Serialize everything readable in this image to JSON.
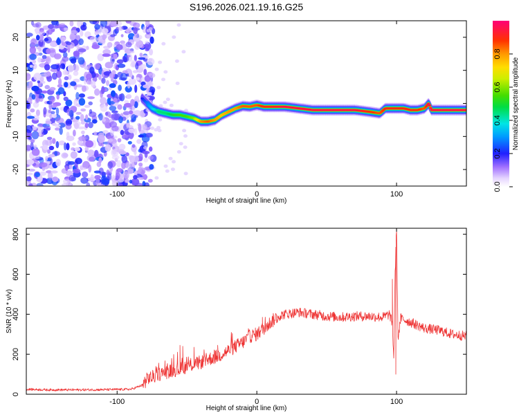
{
  "title": "S196.2026.021.19.16.G25",
  "colors": {
    "snr_line": "#ee3333",
    "ridge": "#ee2222",
    "speckle": "#7a2be0",
    "axis": "#000000"
  },
  "colorbar": {
    "label": "Normalized spectral amplitude",
    "ticks": [
      0.0,
      0.2,
      0.4,
      0.6,
      0.8
    ],
    "tick_labels": [
      "0.0",
      "0.2",
      "0.4",
      "0.6",
      "0.8"
    ],
    "range": [
      0,
      1
    ]
  },
  "chart_data": [
    {
      "type": "heatmap",
      "title": "S196.2026.021.19.16.G25",
      "xlabel": "Height of straight line (km)",
      "ylabel": "Frequency (Hz)",
      "xlim": [
        -165,
        150
      ],
      "ylim": [
        -25,
        25
      ],
      "x_ticks": [
        -100,
        0,
        100
      ],
      "x_tick_labels": [
        "-100",
        "0",
        "100"
      ],
      "y_ticks": [
        -20,
        -10,
        0,
        10,
        20
      ],
      "y_tick_labels": [
        "-20",
        "-10",
        "0",
        "10",
        "20"
      ],
      "noise_region_x": [
        -165,
        -80
      ],
      "ridge": {
        "x": [
          -82,
          -75,
          -70,
          -65,
          -60,
          -55,
          -50,
          -45,
          -40,
          -35,
          -30,
          -25,
          -20,
          -15,
          -10,
          -5,
          0,
          5,
          10,
          20,
          30,
          40,
          50,
          60,
          70,
          80,
          88,
          92,
          95,
          100,
          105,
          110,
          115,
          120,
          123,
          125,
          130,
          140,
          150
        ],
        "y": [
          1.5,
          -1.5,
          -2.5,
          -3,
          -3.5,
          -3.5,
          -4,
          -4.5,
          -5.5,
          -5.5,
          -5,
          -3.5,
          -2.5,
          -1.5,
          -0.8,
          -1,
          -0.5,
          -1,
          -1,
          -1,
          -1.5,
          -2,
          -2,
          -2,
          -2,
          -2.5,
          -3,
          -1.5,
          -1.5,
          -1.5,
          -1.5,
          -2,
          -2,
          -1.5,
          0,
          -2,
          -2,
          -2,
          -2
        ],
        "amplitude": [
          0.2,
          0.35,
          0.45,
          0.45,
          0.5,
          0.55,
          0.55,
          0.6,
          0.8,
          0.85,
          0.8,
          0.75,
          0.8,
          0.8,
          0.85,
          0.85,
          0.85,
          0.9,
          0.9,
          0.95,
          0.95,
          0.95,
          0.95,
          0.95,
          0.95,
          0.9,
          0.85,
          0.9,
          0.9,
          0.9,
          0.9,
          0.9,
          0.9,
          0.85,
          0.95,
          0.95,
          0.95,
          0.95,
          0.95
        ]
      }
    },
    {
      "type": "line",
      "xlabel": "Height of straight line (km)",
      "ylabel": "SNR (10 * v/v)",
      "xlim": [
        -165,
        150
      ],
      "ylim": [
        0,
        830
      ],
      "x_ticks": [
        -100,
        0,
        100
      ],
      "x_tick_labels": [
        "-100",
        "0",
        "100"
      ],
      "y_ticks": [
        0,
        200,
        400,
        600,
        800
      ],
      "y_tick_labels": [
        "0",
        "200",
        "400",
        "600",
        "800"
      ],
      "series": [
        {
          "name": "SNR",
          "x": [
            -165,
            -150,
            -130,
            -110,
            -90,
            -82,
            -78,
            -75,
            -70,
            -65,
            -60,
            -55,
            -50,
            -45,
            -40,
            -35,
            -30,
            -25,
            -20,
            -15,
            -10,
            -5,
            0,
            5,
            10,
            15,
            20,
            30,
            40,
            50,
            60,
            70,
            80,
            90,
            95,
            97,
            98,
            99,
            100,
            101,
            103,
            110,
            120,
            130,
            140,
            150
          ],
          "y": [
            25,
            22,
            22,
            23,
            25,
            45,
            80,
            85,
            100,
            110,
            120,
            125,
            140,
            150,
            160,
            175,
            185,
            200,
            220,
            240,
            260,
            290,
            300,
            330,
            360,
            390,
            400,
            410,
            400,
            390,
            385,
            390,
            390,
            385,
            400,
            350,
            180,
            600,
            830,
            280,
            380,
            360,
            330,
            320,
            300,
            290
          ]
        }
      ],
      "noise_amplitude": [
        {
          "x_from": -165,
          "x_to": -82,
          "amp": 6
        },
        {
          "x_from": -82,
          "x_to": 15,
          "amp": 35
        },
        {
          "x_from": 15,
          "x_to": 150,
          "amp": 25
        }
      ],
      "spikes": [
        {
          "x": -55,
          "y": 245
        },
        {
          "x": -53,
          "y": 240
        },
        {
          "x": -45,
          "y": 235
        },
        {
          "x": -28,
          "y": 245
        },
        {
          "x": 4,
          "y": 385
        },
        {
          "x": 97,
          "y": 575
        },
        {
          "x": 99.5,
          "y": 100
        },
        {
          "x": 100,
          "y": 830
        }
      ]
    }
  ]
}
